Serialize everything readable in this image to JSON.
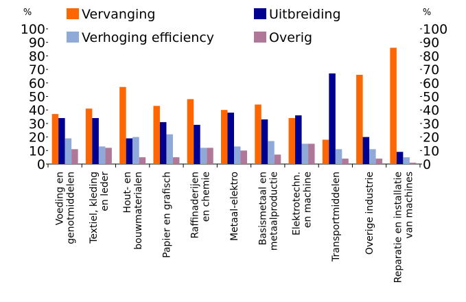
{
  "chart_data": {
    "type": "bar",
    "y_label": "%",
    "y2_label": "%",
    "categories": [
      "Voeding en\ngenotmiddelen",
      "Textiel, kleding\nen leder",
      "Hout- en\nbouwmaterialen",
      "Papier en grafisch",
      "Raffinaderijen\nen chemie",
      "Metaal-elektro",
      "Basismetaal en\nmetaalproductie",
      "Elektrotechn.\nen machine",
      "Transportmiddelen",
      "Overige industrie",
      "Reparatie en installatie\nvan machines"
    ],
    "series": [
      {
        "name": "Vervanging",
        "color": "#ff6600",
        "values": [
          37,
          41,
          57,
          43,
          48,
          40,
          44,
          34,
          18,
          66,
          86
        ]
      },
      {
        "name": "Uitbreiding",
        "color": "#000090",
        "values": [
          34,
          34,
          19,
          31,
          29,
          38,
          33,
          36,
          67,
          20,
          9
        ]
      },
      {
        "name": "Verhoging efficiency",
        "color": "#8faad8",
        "values": [
          19,
          13,
          20,
          22,
          12,
          13,
          17,
          15,
          11,
          11,
          5
        ]
      },
      {
        "name": "Overig",
        "color": "#b07898",
        "values": [
          11,
          12,
          5,
          5,
          12,
          10,
          7,
          15,
          4,
          4,
          1
        ]
      }
    ],
    "ylim": [
      0,
      100
    ],
    "yticks": [
      0,
      10,
      20,
      30,
      40,
      50,
      60,
      70,
      80,
      90,
      100
    ],
    "y2lim": [
      0,
      100
    ],
    "y2ticks": [
      0,
      10,
      20,
      30,
      40,
      50,
      60,
      70,
      80,
      90,
      100
    ],
    "legend": "top"
  }
}
